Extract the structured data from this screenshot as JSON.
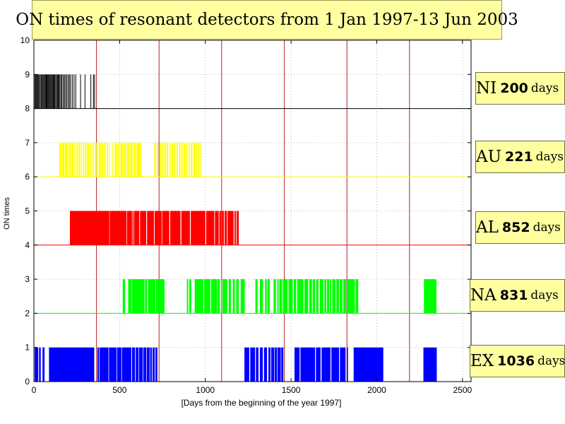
{
  "chart_data": {
    "type": "bar",
    "title": "ON times of resonant detectors from 1 Jan 1997-13 Jun 2003",
    "xlabel": "[Days from the beginning of the year 1997]",
    "ylabel": "ON times",
    "xlim": [
      0,
      2550
    ],
    "ylim": [
      0,
      10
    ],
    "xticks": [
      0,
      500,
      1000,
      1500,
      2000,
      2500
    ],
    "yticks": [
      0,
      1,
      2,
      3,
      4,
      5,
      6,
      7,
      8,
      9,
      10
    ],
    "grid": true,
    "year_boundaries": [
      365,
      730,
      1095,
      1461,
      1826,
      2191
    ],
    "series": [
      {
        "name": "NI",
        "color": "#000000",
        "base": 8,
        "height": 1,
        "total_label": "200",
        "unit_label": "days",
        "intervals": [
          [
            3,
            5
          ],
          [
            8,
            10
          ],
          [
            13,
            15
          ],
          [
            18,
            19
          ],
          [
            21,
            23
          ],
          [
            26,
            27
          ],
          [
            30,
            33
          ],
          [
            36,
            38
          ],
          [
            42,
            43
          ],
          [
            46,
            48
          ],
          [
            51,
            53
          ],
          [
            56,
            58
          ],
          [
            61,
            62
          ],
          [
            65,
            67
          ],
          [
            70,
            71
          ],
          [
            74,
            76
          ],
          [
            79,
            80
          ],
          [
            83,
            85
          ],
          [
            88,
            89
          ],
          [
            92,
            94
          ],
          [
            97,
            99
          ],
          [
            102,
            103
          ],
          [
            106,
            108
          ],
          [
            111,
            112
          ],
          [
            115,
            117
          ],
          [
            120,
            122
          ],
          [
            125,
            127
          ],
          [
            131,
            132
          ],
          [
            135,
            137
          ],
          [
            140,
            141
          ],
          [
            145,
            147
          ],
          [
            150,
            152
          ],
          [
            157,
            158
          ],
          [
            162,
            164
          ],
          [
            170,
            171
          ],
          [
            176,
            178
          ],
          [
            183,
            185
          ],
          [
            190,
            191
          ],
          [
            198,
            199
          ],
          [
            205,
            207
          ],
          [
            212,
            213
          ],
          [
            222,
            224
          ],
          [
            232,
            234
          ],
          [
            242,
            244
          ],
          [
            270,
            272
          ],
          [
            296,
            298
          ],
          [
            330,
            332
          ],
          [
            345,
            348
          ],
          [
            352,
            355
          ]
        ]
      },
      {
        "name": "AU",
        "color": "#ffff00",
        "base": 6,
        "height": 1,
        "total_label": "221",
        "unit_label": "days",
        "intervals": [
          [
            148,
            162
          ],
          [
            165,
            178
          ],
          [
            181,
            194
          ],
          [
            197,
            203
          ],
          [
            207,
            216
          ],
          [
            220,
            230
          ],
          [
            236,
            242
          ],
          [
            248,
            255
          ],
          [
            260,
            268
          ],
          [
            273,
            280
          ],
          [
            286,
            293
          ],
          [
            298,
            306
          ],
          [
            310,
            322
          ],
          [
            328,
            336
          ],
          [
            342,
            350
          ],
          [
            356,
            366
          ],
          [
            370,
            372
          ],
          [
            380,
            392
          ],
          [
            397,
            405
          ],
          [
            410,
            420
          ],
          [
            426,
            433
          ],
          [
            438,
            442
          ],
          [
            455,
            460
          ],
          [
            472,
            488
          ],
          [
            492,
            500
          ],
          [
            505,
            520
          ],
          [
            526,
            538
          ],
          [
            543,
            556
          ],
          [
            562,
            575
          ],
          [
            580,
            593
          ],
          [
            598,
            625
          ],
          [
            702,
            712
          ],
          [
            718,
            725
          ],
          [
            735,
            742
          ],
          [
            748,
            755
          ],
          [
            760,
            770
          ],
          [
            775,
            783
          ],
          [
            790,
            798
          ],
          [
            803,
            812
          ],
          [
            818,
            826
          ],
          [
            832,
            840
          ],
          [
            847,
            855
          ],
          [
            860,
            868
          ],
          [
            874,
            882
          ],
          [
            888,
            896
          ],
          [
            902,
            910
          ],
          [
            916,
            924
          ],
          [
            930,
            940
          ],
          [
            945,
            954
          ],
          [
            958,
            966
          ],
          [
            970,
            976
          ]
        ]
      },
      {
        "name": "AL",
        "color": "#ff0000",
        "base": 4,
        "height": 1,
        "total_label": "852",
        "unit_label": "days",
        "intervals": [
          [
            210,
            440
          ],
          [
            442,
            540
          ],
          [
            543,
            572
          ],
          [
            575,
            582
          ],
          [
            585,
            615
          ],
          [
            619,
            655
          ],
          [
            660,
            700
          ],
          [
            704,
            745
          ],
          [
            748,
            790
          ],
          [
            795,
            855
          ],
          [
            860,
            910
          ],
          [
            915,
            1000
          ],
          [
            1005,
            1052
          ],
          [
            1056,
            1078
          ],
          [
            1082,
            1092
          ],
          [
            1096,
            1108
          ],
          [
            1112,
            1126
          ],
          [
            1130,
            1165
          ],
          [
            1170,
            1178
          ],
          [
            1182,
            1195
          ]
        ]
      },
      {
        "name": "NA",
        "color": "#00ff00",
        "base": 2,
        "height": 1,
        "total_label": "831",
        "unit_label": "days",
        "intervals": [
          [
            518,
            532
          ],
          [
            550,
            570
          ],
          [
            572,
            645
          ],
          [
            648,
            660
          ],
          [
            665,
            710
          ],
          [
            712,
            762
          ],
          [
            892,
            900
          ],
          [
            906,
            918
          ],
          [
            938,
            988
          ],
          [
            992,
            1030
          ],
          [
            1034,
            1068
          ],
          [
            1070,
            1085
          ],
          [
            1100,
            1128
          ],
          [
            1136,
            1150
          ],
          [
            1160,
            1172
          ],
          [
            1180,
            1195
          ],
          [
            1206,
            1230
          ],
          [
            1292,
            1305
          ],
          [
            1318,
            1336
          ],
          [
            1348,
            1358
          ],
          [
            1362,
            1376
          ],
          [
            1398,
            1412
          ],
          [
            1420,
            1428
          ],
          [
            1432,
            1448
          ],
          [
            1452,
            1480
          ],
          [
            1485,
            1510
          ],
          [
            1516,
            1530
          ],
          [
            1536,
            1572
          ],
          [
            1578,
            1600
          ],
          [
            1606,
            1622
          ],
          [
            1626,
            1640
          ],
          [
            1646,
            1660
          ],
          [
            1668,
            1688
          ],
          [
            1694,
            1706
          ],
          [
            1710,
            1722
          ],
          [
            1726,
            1734
          ],
          [
            1740,
            1760
          ],
          [
            1764,
            1780
          ],
          [
            1784,
            1800
          ],
          [
            1804,
            1822
          ],
          [
            1830,
            1872
          ],
          [
            1876,
            1892
          ],
          [
            2275,
            2348
          ]
        ]
      },
      {
        "name": "EX",
        "color": "#0000ff",
        "base": 0,
        "height": 1,
        "total_label": "1036",
        "unit_label": "days",
        "intervals": [
          [
            4,
            25
          ],
          [
            30,
            40
          ],
          [
            50,
            62
          ],
          [
            88,
            352
          ],
          [
            370,
            380
          ],
          [
            383,
            435
          ],
          [
            438,
            482
          ],
          [
            485,
            510
          ],
          [
            513,
            568
          ],
          [
            572,
            590
          ],
          [
            594,
            610
          ],
          [
            613,
            635
          ],
          [
            638,
            655
          ],
          [
            658,
            675
          ],
          [
            678,
            688
          ],
          [
            692,
            705
          ],
          [
            709,
            720
          ],
          [
            1228,
            1256
          ],
          [
            1262,
            1290
          ],
          [
            1295,
            1310
          ],
          [
            1318,
            1335
          ],
          [
            1342,
            1360
          ],
          [
            1368,
            1380
          ],
          [
            1384,
            1402
          ],
          [
            1405,
            1418
          ],
          [
            1421,
            1440
          ],
          [
            1443,
            1455
          ],
          [
            1520,
            1550
          ],
          [
            1555,
            1640
          ],
          [
            1645,
            1672
          ],
          [
            1678,
            1730
          ],
          [
            1735,
            1780
          ],
          [
            1785,
            1818
          ],
          [
            1826,
            1832
          ],
          [
            1865,
            2038
          ],
          [
            2272,
            2350
          ]
        ]
      }
    ]
  }
}
